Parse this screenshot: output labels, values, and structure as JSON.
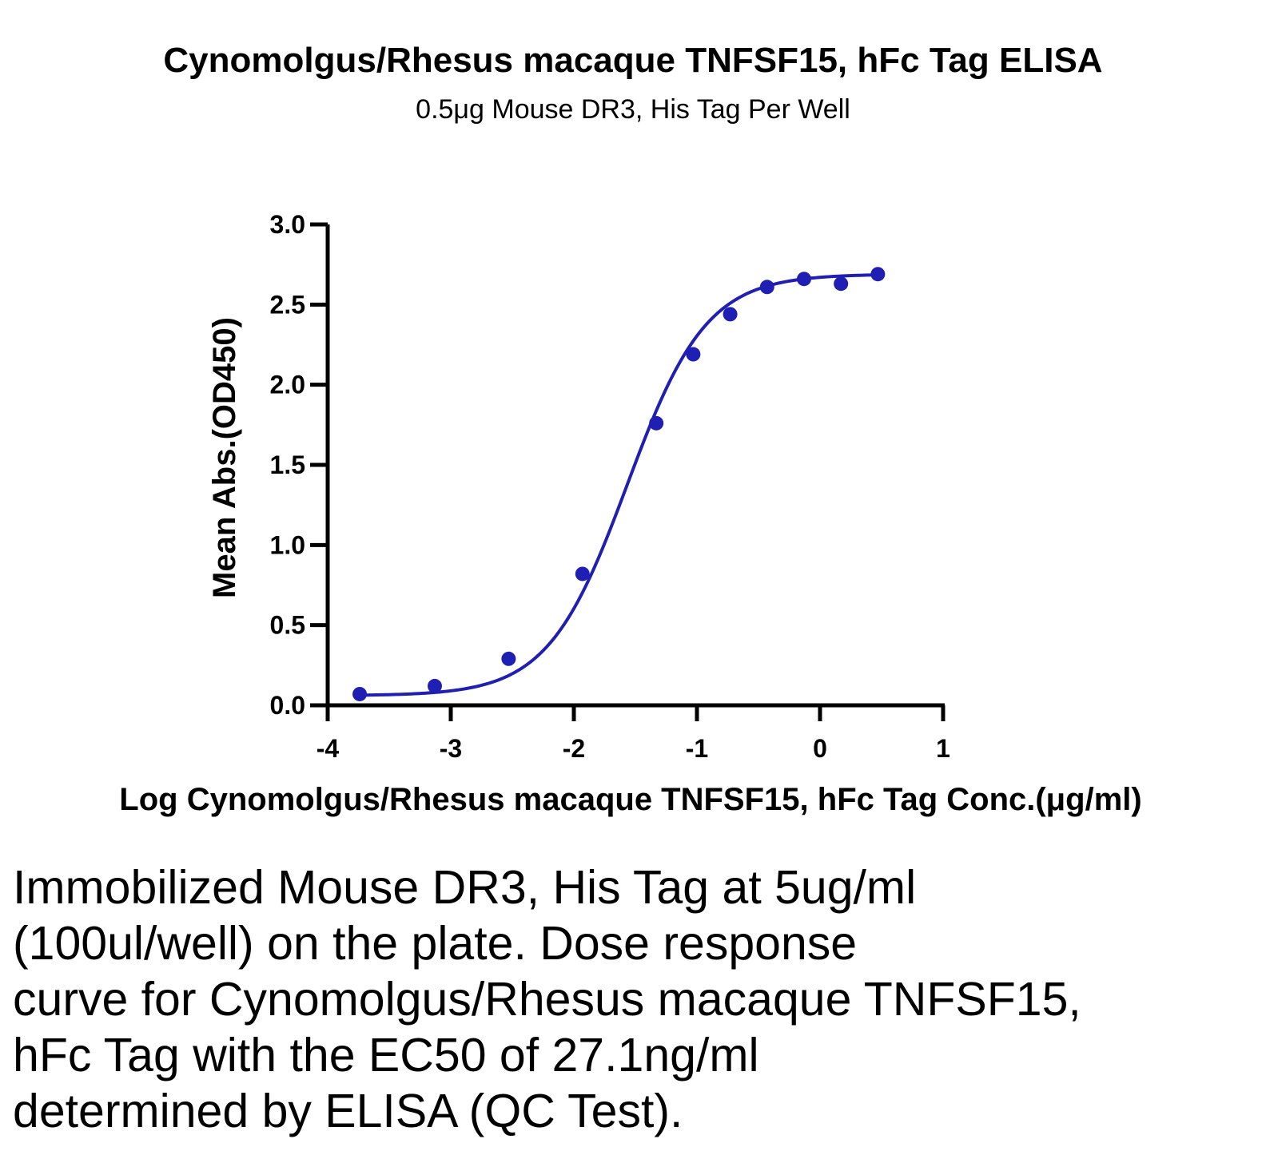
{
  "chart_data": {
    "type": "scatter",
    "title": "Cynomolgus/Rhesus macaque TNFSF15, hFc Tag ELISA",
    "subtitle": "0.5μg Mouse DR3, His Tag Per Well",
    "xlabel": "Log Cynomolgus/Rhesus macaque TNFSF15, hFc Tag Conc.(μg/ml)",
    "ylabel": "Mean Abs.(OD450)",
    "xlim": [
      -4,
      1
    ],
    "ylim": [
      0,
      3.0
    ],
    "xticks": [
      "-4",
      "-3",
      "-2",
      "-1",
      "0",
      "1"
    ],
    "yticks": [
      "0.0",
      "0.5",
      "1.0",
      "1.5",
      "2.0",
      "2.5",
      "3.0"
    ],
    "grid": false,
    "color": "#1f1fb4",
    "series": [
      {
        "x": [
          -3.74,
          -3.13,
          -2.53,
          -1.93,
          -1.33,
          -1.03,
          -0.73,
          -0.43,
          -0.13,
          0.17,
          0.47
        ],
        "y": [
          0.07,
          0.12,
          0.29,
          0.82,
          1.76,
          2.19,
          2.44,
          2.61,
          2.66,
          2.63,
          2.69
        ]
      }
    ],
    "fit": {
      "model": "4PL",
      "bottom": 0.06,
      "top": 2.69,
      "log_ec50": -1.567,
      "hill": 1.35,
      "x_range": [
        -3.74,
        0.47
      ]
    }
  },
  "caption": {
    "lines": [
      "Immobilized Mouse DR3, His Tag at 5ug/ml",
      "(100ul/well) on the plate. Dose response",
      "curve for Cynomolgus/Rhesus macaque TNFSF15,",
      "hFc Tag with the EC50 of 27.1ng/ml",
      "determined by ELISA (QC Test)."
    ]
  }
}
